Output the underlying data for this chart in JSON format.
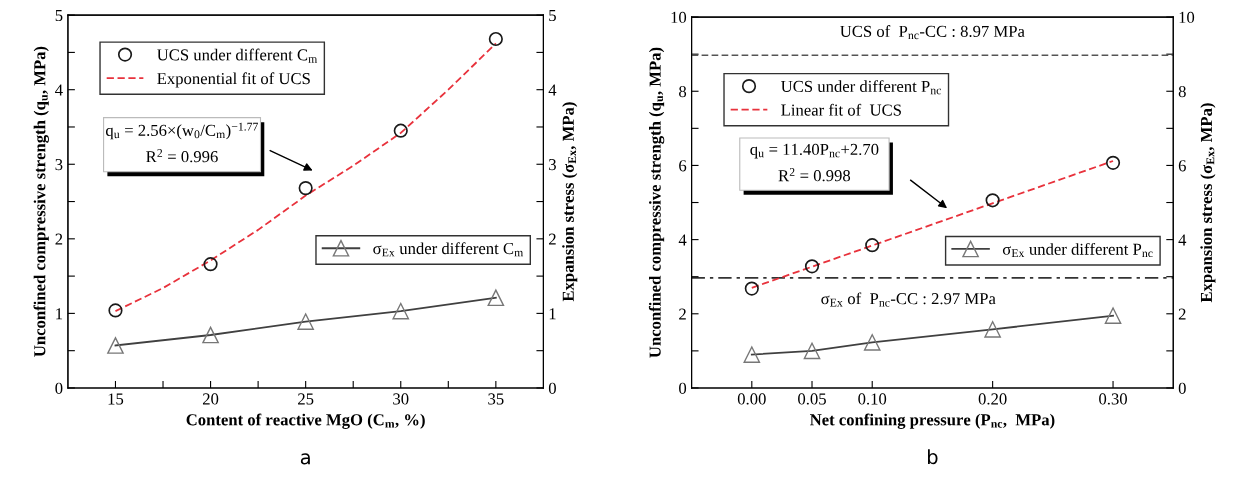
{
  "chart_data": [
    {
      "type": "scatter",
      "xlabel": "Content of reactive MgO (C$_{m}$, %)",
      "ylabel": "Unconfined compressive strength (q$_{u}$, MPa)",
      "y2label": "Expansion stress (σ$_{Ex}$, MPa)",
      "x": [
        15,
        20,
        25,
        30,
        35
      ],
      "series": [
        {
          "name": "UCS under different C$_{m}$",
          "marker": "circle",
          "color": "#1a1a1a",
          "values": [
            1.04,
            1.66,
            2.68,
            3.45,
            4.68
          ]
        },
        {
          "name": "Exponential fit of UCS",
          "type": "line",
          "line_style": "dashed",
          "marker": "none",
          "color": "#e8323c",
          "x": [
            15,
            17.5,
            20,
            22.5,
            25,
            27.5,
            30,
            32.5,
            35
          ],
          "values": [
            1.03,
            1.34,
            1.71,
            2.12,
            2.58,
            2.98,
            3.42,
            4.0,
            4.62
          ]
        },
        {
          "name": "σ$_{Ex}$ under different C$_{m}$",
          "type": "line",
          "axis": "y2",
          "line_style": "solid",
          "marker": "triangle",
          "color": "#404040",
          "values": [
            0.57,
            0.71,
            0.89,
            1.03,
            1.21
          ]
        }
      ],
      "xlim": [
        12.5,
        37.5
      ],
      "xticks": [
        15,
        {
          "value": 17.5,
          "label": null
        },
        20,
        {
          "value": 22.5,
          "label": null
        },
        25,
        {
          "value": 27.5,
          "label": null
        },
        30,
        {
          "value": 32.5,
          "label": null
        },
        35
      ],
      "ylim": [
        0,
        5
      ],
      "yticks": [
        0,
        {
          "value": 0.5,
          "label": null
        },
        1,
        {
          "value": 1.5,
          "label": null
        },
        2,
        {
          "value": 2.5,
          "label": null
        },
        3,
        {
          "value": 3.5,
          "label": null
        },
        4,
        {
          "value": 4.5,
          "label": null
        },
        5
      ],
      "y2lim": [
        0,
        5
      ],
      "y2ticks": [
        0,
        {
          "value": 0.5,
          "label": null
        },
        1,
        {
          "value": 1.5,
          "label": null
        },
        2,
        {
          "value": 2.5,
          "label": null
        },
        3,
        {
          "value": 3.5,
          "label": null
        },
        4,
        {
          "value": 4.5,
          "label": null
        },
        5
      ],
      "legend": "top left",
      "grid": false,
      "annotations": [
        "q$_{u}$ = 2.56×(w$_{0}$/C$_{m}$)$^{−1.77}$",
        "R$^{2}$ = 0.996",
        "a"
      ]
    },
    {
      "type": "scatter",
      "xlabel": "Net confining pressure (P$_{nc}$,  MPa)",
      "ylabel": "Unconfined compressive strength (q$_{u}$, MPa)",
      "y2label": "Expansion stress (σ$_{Ex}$, MPa)",
      "x": [
        0,
        0.05,
        0.1,
        0.2,
        0.3
      ],
      "series": [
        {
          "name": "UCS under different P$_{nc}$",
          "marker": "circle",
          "color": "#1a1a1a",
          "values": [
            2.68,
            3.28,
            3.85,
            5.06,
            6.07
          ]
        },
        {
          "name": "Linear fit of  UCS",
          "type": "line",
          "line_style": "dashed",
          "marker": "none",
          "color": "#e8323c",
          "x": [
            0,
            0.3
          ],
          "values": [
            2.7,
            6.12
          ]
        },
        {
          "name": "σ$_{Ex}$ under different P$_{nc}$",
          "type": "line",
          "axis": "y2",
          "line_style": "solid",
          "marker": "triangle",
          "color": "#404040",
          "values": [
            0.9,
            1.0,
            1.23,
            1.58,
            1.95
          ]
        }
      ],
      "xlim": [
        -0.05,
        0.35
      ],
      "xticks": [
        {
          "value": 0,
          "label": "0.00"
        },
        0.05,
        {
          "value": 0.1,
          "label": "0.10"
        },
        {
          "value": 0.2,
          "label": "0.20"
        },
        {
          "value": 0.3,
          "label": "0.30"
        }
      ],
      "ylim": [
        0,
        10
      ],
      "yticks": [
        0,
        {
          "value": 1,
          "label": null
        },
        2,
        {
          "value": 3,
          "label": null
        },
        4,
        {
          "value": 5,
          "label": null
        },
        6,
        {
          "value": 7,
          "label": null
        },
        8,
        {
          "value": 9,
          "label": null
        },
        10
      ],
      "y2lim": [
        0,
        10
      ],
      "y2ticks": [
        0,
        {
          "value": 1,
          "label": null
        },
        2,
        {
          "value": 3,
          "label": null
        },
        4,
        {
          "value": 5,
          "label": null
        },
        6,
        {
          "value": 7,
          "label": null
        },
        8,
        {
          "value": 9,
          "label": null
        },
        10
      ],
      "ref_lines": [
        {
          "axis": "y",
          "value": 8.97,
          "label": "UCS of  P$_{nc}$-CC : 8.97 MPa",
          "color": "#555555",
          "line_style": "dashed"
        },
        {
          "axis": "y2",
          "value": 2.97,
          "label": "σ$_{Ex}$ of  P$_{nc}$-CC : 2.97 MPa",
          "color": "#333333",
          "line_style": "dashdot"
        }
      ],
      "legend": "top left",
      "grid": false,
      "annotations": [
        "q$_{u}$ = 11.40P$_{nc}$+2.70",
        "R$^{2}$ = 0.998",
        "b"
      ]
    }
  ]
}
